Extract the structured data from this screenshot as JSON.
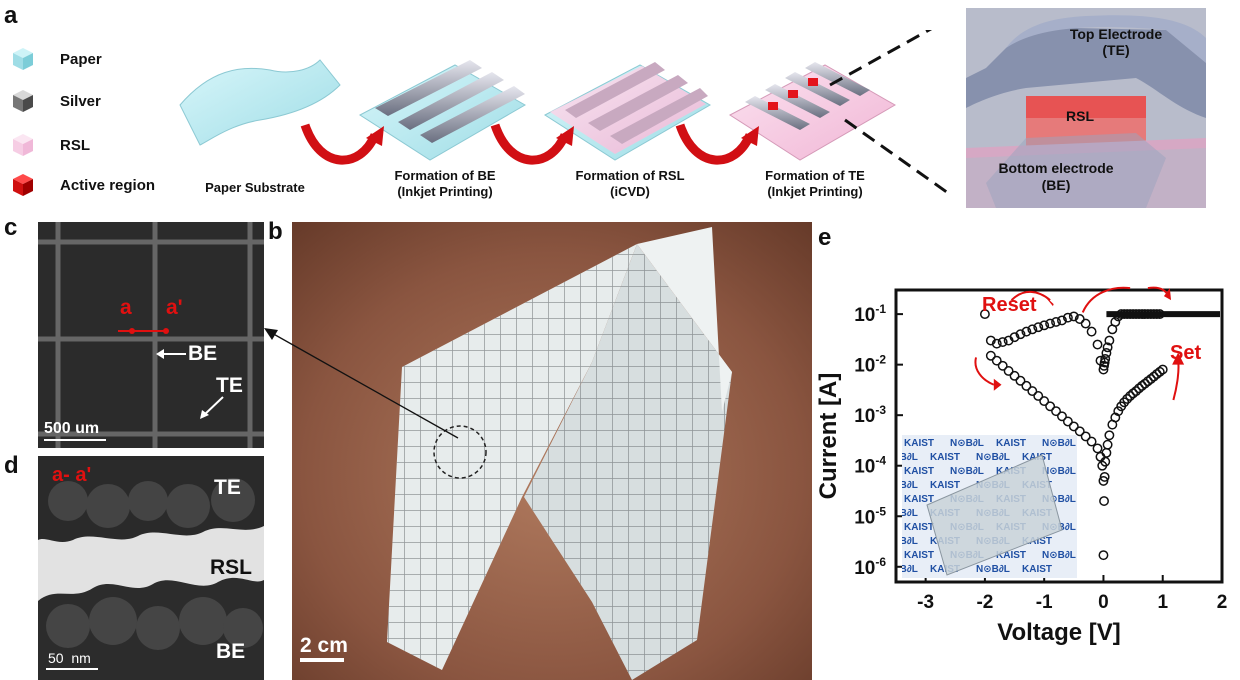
{
  "panel_a": {
    "label": "a",
    "legend": [
      {
        "label": "Paper",
        "color": "#a7e4ee"
      },
      {
        "label": "Silver",
        "color": "#8a8a8a"
      },
      {
        "label": "RSL",
        "color": "#f7c9e4"
      },
      {
        "label": "Active region",
        "color": "#e3141b"
      }
    ],
    "steps": [
      {
        "line1": "Paper Substrate",
        "line2": ""
      },
      {
        "line1": "Formation of BE",
        "line2": "(Inkjet Printing)"
      },
      {
        "line1": "Formation of RSL",
        "line2": "(iCVD)"
      },
      {
        "line1": "Formation of TE",
        "line2": "(Inkjet Printing)"
      }
    ],
    "zoom": {
      "te_line1": "Top Electrode",
      "te_line2": "(TE)",
      "rsl": "RSL",
      "be_line1": "Bottom electrode",
      "be_line2": "(BE)"
    }
  },
  "panel_c": {
    "label": "c",
    "a": "a",
    "a_prime": "a'",
    "be": "BE",
    "te": "TE",
    "scale": "500 um"
  },
  "panel_d": {
    "label": "d",
    "section": "a- a'",
    "te": "TE",
    "rsl": "RSL",
    "be": "BE",
    "scale": "50  nm"
  },
  "panel_b": {
    "label": "b",
    "scale": "2 cm"
  },
  "panel_e": {
    "label": "e",
    "reset": "Reset",
    "set": "Set",
    "inset_words": [
      "KAIST",
      "N⊙B∂L"
    ]
  },
  "chart_data": {
    "type": "scatter",
    "title": "",
    "xlabel": "Voltage [V]",
    "ylabel": "Current [A]",
    "xlim": [
      -3.5,
      2
    ],
    "ylim": [
      5e-07,
      0.3
    ],
    "yscale": "log",
    "xticks": [
      "-3",
      "-2",
      "-1",
      "0",
      "1",
      "2"
    ],
    "yticks": [
      "10-6",
      "10-5",
      "10-4",
      "10-3",
      "10-2",
      "10-1"
    ],
    "annotations": [
      "Reset",
      "Set"
    ],
    "series": [
      {
        "x": [
          0.0,
          0.01,
          0.02,
          0.03,
          0.05,
          0.07,
          0.1,
          0.15,
          0.2,
          0.25,
          0.3,
          0.35,
          0.4,
          0.45,
          0.5,
          0.55,
          0.6,
          0.65,
          0.7,
          0.75,
          0.8,
          0.85,
          0.9,
          0.95,
          1.0,
          0.95,
          0.9,
          0.85,
          0.8,
          0.75,
          0.7,
          0.65,
          0.6,
          0.55,
          0.5,
          0.45,
          0.4,
          0.35,
          0.3,
          0.25,
          0.2,
          0.15,
          0.1,
          0.07,
          0.05,
          0.03,
          0.02,
          0.01,
          0.0,
          -0.05,
          -0.1,
          -0.2,
          -0.3,
          -0.4,
          -0.5,
          -0.6,
          -0.7,
          -0.8,
          -0.9,
          -1.0,
          -1.1,
          -1.2,
          -1.3,
          -1.4,
          -1.5,
          -1.6,
          -1.7,
          -1.8,
          -1.9,
          -2.0,
          -1.9,
          -1.8,
          -1.7,
          -1.6,
          -1.5,
          -1.4,
          -1.3,
          -1.2,
          -1.1,
          -1.0,
          -0.9,
          -0.8,
          -0.7,
          -0.6,
          -0.5,
          -0.4,
          -0.3,
          -0.2,
          -0.1,
          -0.05,
          -0.02,
          0.0
        ],
        "y": [
          1.7e-06,
          2e-05,
          6e-05,
          0.00012,
          0.00018,
          0.00026,
          0.0004,
          0.00065,
          0.0009,
          0.0012,
          0.0015,
          0.0018,
          0.0021,
          0.0024,
          0.0027,
          0.003,
          0.0034,
          0.0038,
          0.0042,
          0.0047,
          0.0052,
          0.0058,
          0.0065,
          0.0072,
          0.008,
          0.1,
          0.1,
          0.1,
          0.1,
          0.1,
          0.1,
          0.1,
          0.1,
          0.1,
          0.1,
          0.1,
          0.1,
          0.1,
          0.1,
          0.09,
          0.07,
          0.05,
          0.03,
          0.022,
          0.017,
          0.013,
          0.011,
          0.0095,
          0.008,
          0.012,
          0.025,
          0.045,
          0.065,
          0.08,
          0.09,
          0.085,
          0.075,
          0.07,
          0.065,
          0.06,
          0.055,
          0.05,
          0.045,
          0.04,
          0.035,
          0.03,
          0.028,
          0.026,
          0.03,
          0.1,
          0.015,
          0.012,
          0.0095,
          0.0075,
          0.006,
          0.0048,
          0.0038,
          0.003,
          0.0024,
          0.0019,
          0.0015,
          0.0012,
          0.00095,
          0.00075,
          0.0006,
          0.00048,
          0.00038,
          0.0003,
          0.00022,
          0.00015,
          0.0001,
          5e-05
        ]
      }
    ]
  }
}
